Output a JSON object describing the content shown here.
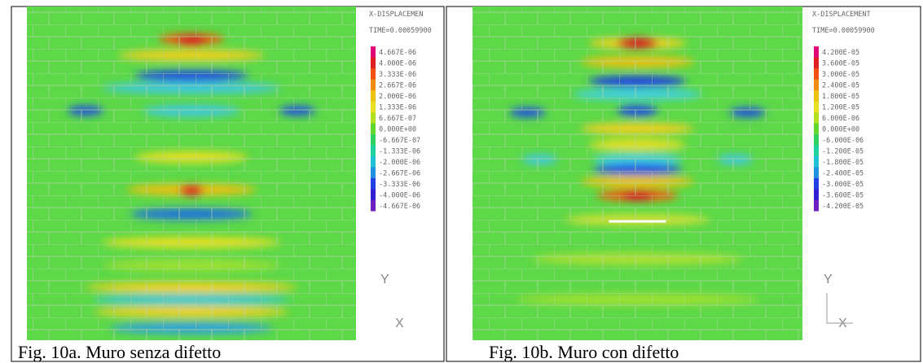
{
  "panels": [
    {
      "title": "X-DISPLACEMEN",
      "time": "TIME=0.00059900",
      "legend": [
        "4.667E-06",
        "4.000E-06",
        "3.333E-06",
        "2.667E-06",
        "2.000E-06",
        "1.333E-06",
        "6.667E-07",
        "0.000E+00",
        "-6.667E-07",
        "-1.333E-06",
        "-2.000E-06",
        "-2.667E-06",
        "-3.333E-06",
        "-4.000E-06",
        "-4.667E-06"
      ],
      "axis_y": "Y",
      "axis_x": "X",
      "caption": "Fig. 10a. Muro senza difetto"
    },
    {
      "title": "X-DISPLACEMENT",
      "time": "TIME=0.00059900",
      "legend": [
        "4.200E-05",
        "3.600E-05",
        "3.000E-05",
        "2.400E-05",
        "1.800E-05",
        "1.200E-05",
        "6.000E-06",
        "0.000E+00",
        "-6.000E-06",
        "-1.200E-05",
        "-1.800E-05",
        "-2.400E-05",
        "-3.000E-05",
        "-3.600E-05",
        "-4.200E-05"
      ],
      "axis_y": "Y",
      "axis_x": "X",
      "caption": "Fig. 10b. Muro con difetto"
    }
  ]
}
